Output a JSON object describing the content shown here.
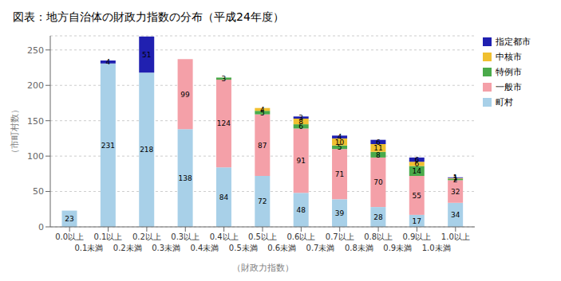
{
  "chart_data": {
    "type": "bar",
    "title": "図表：地方自治体の財政力指数の分布（平成24年度）",
    "xlabel": "（財政力指数）",
    "ylabel": "（市町村数）",
    "categories": [
      "0.0以上",
      "0.1以上",
      "0.2以上",
      "0.3以上",
      "0.4以上",
      "0.5以上",
      "0.6以上",
      "0.7以上",
      "0.8以上",
      "0.9以上",
      "1.0以上"
    ],
    "annotations": [
      "0.1未満",
      "0.2未満",
      "0.3未満",
      "0.4未満",
      "0.5未満",
      "0.6未満",
      "0.7未満",
      "0.8未満",
      "0.9未満",
      "1.0未満"
    ],
    "series": [
      {
        "name": "町村",
        "color": "#a8d0e8",
        "values": [
          23,
          231,
          218,
          138,
          84,
          72,
          48,
          39,
          28,
          17,
          34
        ]
      },
      {
        "name": "一般市",
        "color": "#f4a0a8",
        "values": [
          0,
          0,
          0,
          99,
          124,
          87,
          91,
          71,
          70,
          55,
          32
        ]
      },
      {
        "name": "特例市",
        "color": "#4aaa4a",
        "values": [
          0,
          0,
          0,
          0,
          3,
          5,
          6,
          5,
          8,
          14,
          2
        ]
      },
      {
        "name": "中核市",
        "color": "#f0c030",
        "values": [
          0,
          0,
          0,
          0,
          0,
          4,
          8,
          10,
          11,
          6,
          1
        ]
      },
      {
        "name": "指定都市",
        "color": "#2020b0",
        "values": [
          0,
          4,
          51,
          0,
          0,
          0,
          3,
          4,
          6,
          6,
          1
        ]
      }
    ],
    "stacked": true,
    "data_labels": true,
    "ylim": [
      0,
      270
    ],
    "yticks": [
      0,
      50,
      100,
      150,
      200,
      250
    ],
    "grid": true,
    "legend": "upper right"
  }
}
